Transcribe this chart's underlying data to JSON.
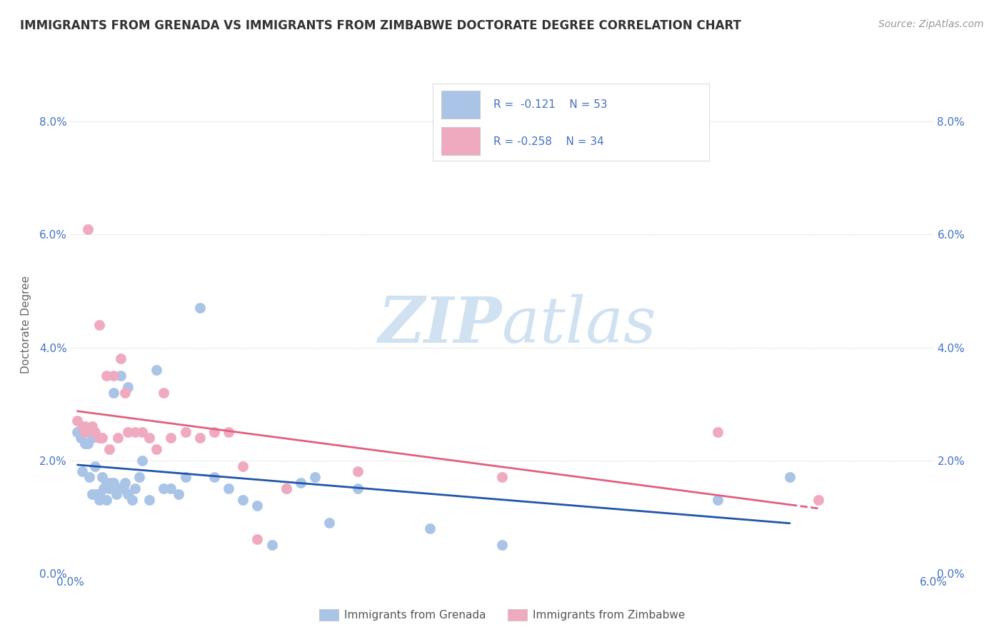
{
  "title": "IMMIGRANTS FROM GRENADA VS IMMIGRANTS FROM ZIMBABWE DOCTORATE DEGREE CORRELATION CHART",
  "source": "Source: ZipAtlas.com",
  "ylabel": "Doctorate Degree",
  "ytick_values": [
    0.0,
    2.0,
    4.0,
    6.0,
    8.0
  ],
  "xlim": [
    0.0,
    6.0
  ],
  "ylim": [
    0.0,
    8.8
  ],
  "grenada_color": "#aac4e8",
  "zimbabwe_color": "#f0aac0",
  "trendline_grenada_color": "#2255aa",
  "trendline_zimbabwe_color": "#e06080",
  "watermark_zip": "ZIP",
  "watermark_atlas": "atlas",
  "grenada_label": "Immigrants from Grenada",
  "zimbabwe_label": "Immigrants from Zimbabwe",
  "grenada_x": [
    0.05,
    0.07,
    0.08,
    0.1,
    0.1,
    0.12,
    0.13,
    0.15,
    0.15,
    0.17,
    0.18,
    0.2,
    0.2,
    0.22,
    0.23,
    0.25,
    0.25,
    0.27,
    0.28,
    0.3,
    0.3,
    0.32,
    0.33,
    0.35,
    0.37,
    0.38,
    0.4,
    0.4,
    0.43,
    0.45,
    0.48,
    0.5,
    0.55,
    0.6,
    0.65,
    0.7,
    0.75,
    0.8,
    0.9,
    1.0,
    1.1,
    1.2,
    1.3,
    1.4,
    1.5,
    1.6,
    1.7,
    1.8,
    2.0,
    2.5,
    3.0,
    4.5,
    5.0
  ],
  "grenada_y": [
    2.5,
    2.4,
    1.8,
    2.5,
    2.3,
    2.3,
    1.7,
    2.4,
    1.4,
    1.9,
    1.4,
    1.4,
    1.3,
    1.7,
    1.5,
    1.6,
    1.3,
    1.5,
    1.6,
    3.2,
    1.6,
    1.4,
    1.5,
    3.5,
    1.5,
    1.6,
    1.4,
    3.3,
    1.3,
    1.5,
    1.7,
    2.0,
    1.3,
    3.6,
    1.5,
    1.5,
    1.4,
    1.7,
    4.7,
    1.7,
    1.5,
    1.3,
    1.2,
    0.5,
    1.5,
    1.6,
    1.7,
    0.9,
    1.5,
    0.8,
    0.5,
    1.3,
    1.7
  ],
  "zimbabwe_x": [
    0.05,
    0.08,
    0.1,
    0.12,
    0.15,
    0.17,
    0.2,
    0.22,
    0.25,
    0.27,
    0.3,
    0.33,
    0.35,
    0.38,
    0.4,
    0.45,
    0.5,
    0.55,
    0.6,
    0.65,
    0.7,
    0.8,
    0.9,
    1.0,
    1.1,
    1.2,
    1.3,
    1.5,
    2.0,
    3.0,
    4.5,
    5.2,
    0.1,
    0.2
  ],
  "zimbabwe_y": [
    2.7,
    2.6,
    2.5,
    6.1,
    2.6,
    2.5,
    4.4,
    2.4,
    3.5,
    2.2,
    3.5,
    2.4,
    3.8,
    3.2,
    2.5,
    2.5,
    2.5,
    2.4,
    2.2,
    3.2,
    2.4,
    2.5,
    2.4,
    2.5,
    2.5,
    1.9,
    0.6,
    1.5,
    1.8,
    1.7,
    2.5,
    1.3,
    2.6,
    2.4
  ]
}
